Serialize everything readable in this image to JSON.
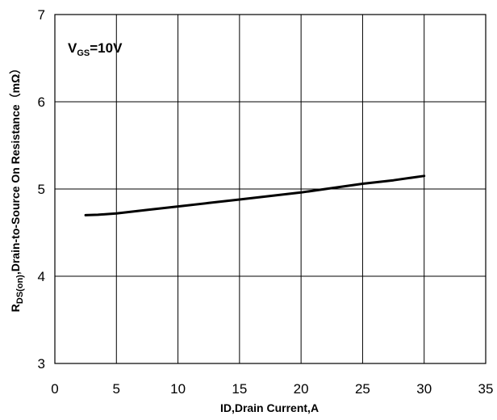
{
  "chart_data": {
    "type": "line",
    "title": "",
    "xlabel": "ID,Drain Current,A",
    "ylabel": {
      "main": "R",
      "subscript": "DS(on)",
      "rest": ",Drain-to-Source On Resistance（mΩ）"
    },
    "annotation": {
      "main": "V",
      "subscript": "GS",
      "rest": "=10V"
    },
    "xlim": [
      0,
      35
    ],
    "ylim": [
      3,
      7
    ],
    "xticks": [
      "0",
      "5",
      "10",
      "15",
      "20",
      "25",
      "30",
      "35"
    ],
    "yticks": [
      "3",
      "4",
      "5",
      "6",
      "7"
    ],
    "grid": true,
    "legend": "none",
    "series": [
      {
        "color": "#000000",
        "x": [
          2.5,
          3.5,
          5,
          7.5,
          10,
          12.5,
          15,
          17.5,
          20,
          22.5,
          25,
          27.5,
          30
        ],
        "y": [
          4.7,
          4.705,
          4.72,
          4.76,
          4.8,
          4.84,
          4.88,
          4.92,
          4.96,
          5.01,
          5.06,
          5.1,
          5.15
        ]
      }
    ]
  }
}
